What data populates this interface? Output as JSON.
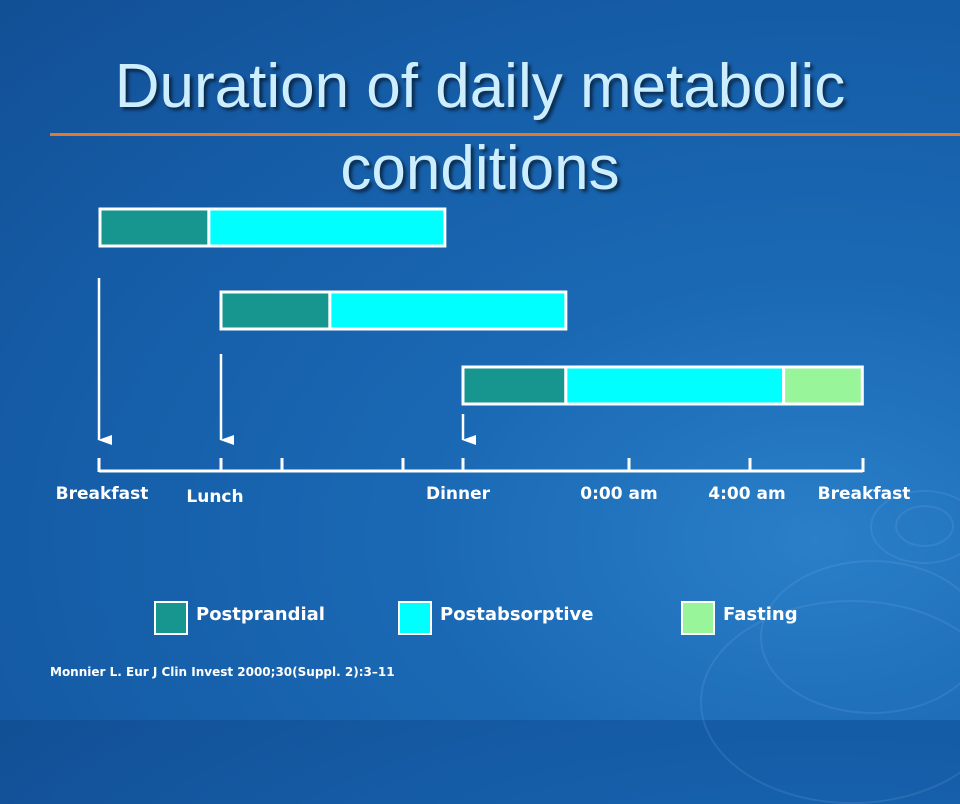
{
  "slide": {
    "title": "Duration of daily metabolic conditions",
    "citation": "Monnier L. Eur J Clin Invest 2000;30(Suppl. 2):3–11"
  },
  "colors": {
    "postprandial": "#16968e",
    "postabsorptive": "#00ffff",
    "fasting": "#99f59a",
    "accent_rule": "#e07b2d"
  },
  "timeline": {
    "labels": [
      "Breakfast",
      "Lunch",
      "Dinner",
      "0:00 am",
      "4:00 am",
      "Breakfast"
    ]
  },
  "legend": [
    {
      "key": "postprandial",
      "label": "Postprandial"
    },
    {
      "key": "postabsorptive",
      "label": "Postabsorptive"
    },
    {
      "key": "fasting",
      "label": "Fasting"
    }
  ],
  "meals": [
    {
      "name": "Breakfast",
      "segments": [
        {
          "phase": "postprandial",
          "start": 0,
          "end": 1.8
        },
        {
          "phase": "postabsorptive",
          "start": 1.8,
          "end": 5.7
        }
      ]
    },
    {
      "name": "Lunch",
      "segments": [
        {
          "phase": "postprandial",
          "start": 2,
          "end": 3.8
        },
        {
          "phase": "postabsorptive",
          "start": 3.8,
          "end": 7.7
        }
      ]
    },
    {
      "name": "Dinner",
      "segments": [
        {
          "phase": "postprandial",
          "start": 6,
          "end": 7.7
        },
        {
          "phase": "postabsorptive",
          "start": 7.7,
          "end": 11.3
        },
        {
          "phase": "fasting",
          "start": 11.3,
          "end": 12.6
        }
      ]
    }
  ]
}
